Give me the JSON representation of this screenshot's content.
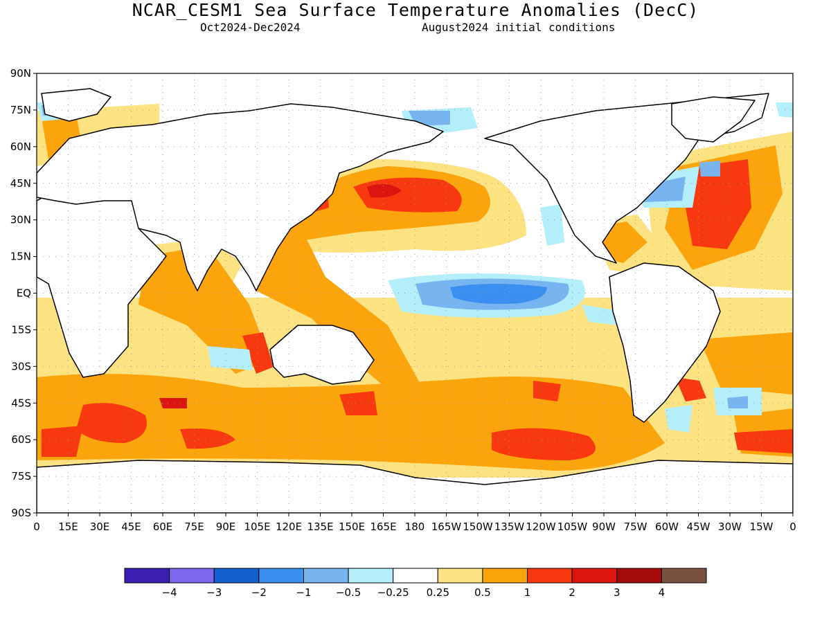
{
  "header": {
    "title": "NCAR_CESM1 Sea Surface Temperature Anomalies (DecC)",
    "period": "Oct2024-Dec2024",
    "init": "August2024 initial conditions"
  },
  "axes": {
    "lat_labels": [
      "90N",
      "75N",
      "60N",
      "45N",
      "30N",
      "15N",
      "EQ",
      "15S",
      "30S",
      "45S",
      "60S",
      "75S",
      "90S"
    ],
    "lon_labels": [
      "0",
      "15E",
      "30E",
      "45E",
      "60E",
      "75E",
      "90E",
      "105E",
      "120E",
      "135E",
      "150E",
      "165E",
      "180",
      "165W",
      "150W",
      "135W",
      "120W",
      "105W",
      "90W",
      "75W",
      "60W",
      "45W",
      "30W",
      "15W",
      "0"
    ]
  },
  "colorbar": {
    "colors": [
      "#3b1fb0",
      "#7b68ee",
      "#1460d0",
      "#3a8ff0",
      "#78b4f0",
      "#b4eefa",
      "#ffffff",
      "#fde282",
      "#fba40c",
      "#f8380f",
      "#dc1510",
      "#a50a0a",
      "#7a5040"
    ],
    "labels": [
      "-4",
      "-3",
      "-2",
      "-1",
      "-0.5",
      "-0.25",
      "0.25",
      "0.5",
      "1",
      "2",
      "3",
      "4"
    ]
  },
  "map_colors": {
    "land": "#ffffff",
    "coast": "#000000",
    "grid": "#999999"
  }
}
